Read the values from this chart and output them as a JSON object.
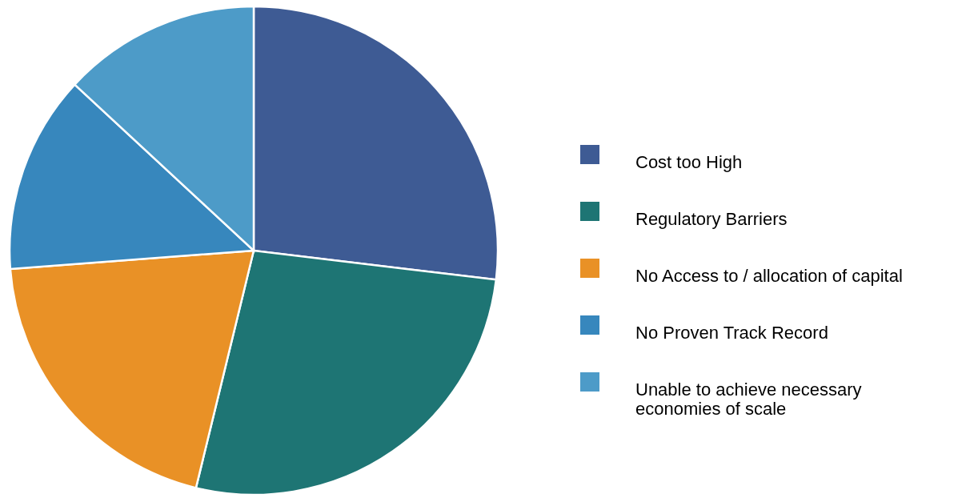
{
  "chart_data": {
    "type": "pie",
    "categories": [
      "Cost too High",
      "Regulatory Barriers",
      "No Access to / allocation of capital",
      "No Proven Track Record",
      "Unable to achieve necessary economies of scale"
    ],
    "values": [
      26.9,
      26.9,
      20.0,
      13.1,
      13.1
    ],
    "colors": [
      "#3e5b94",
      "#1e7574",
      "#e99126",
      "#3787bd",
      "#4d9bc8"
    ],
    "legend": "right"
  }
}
